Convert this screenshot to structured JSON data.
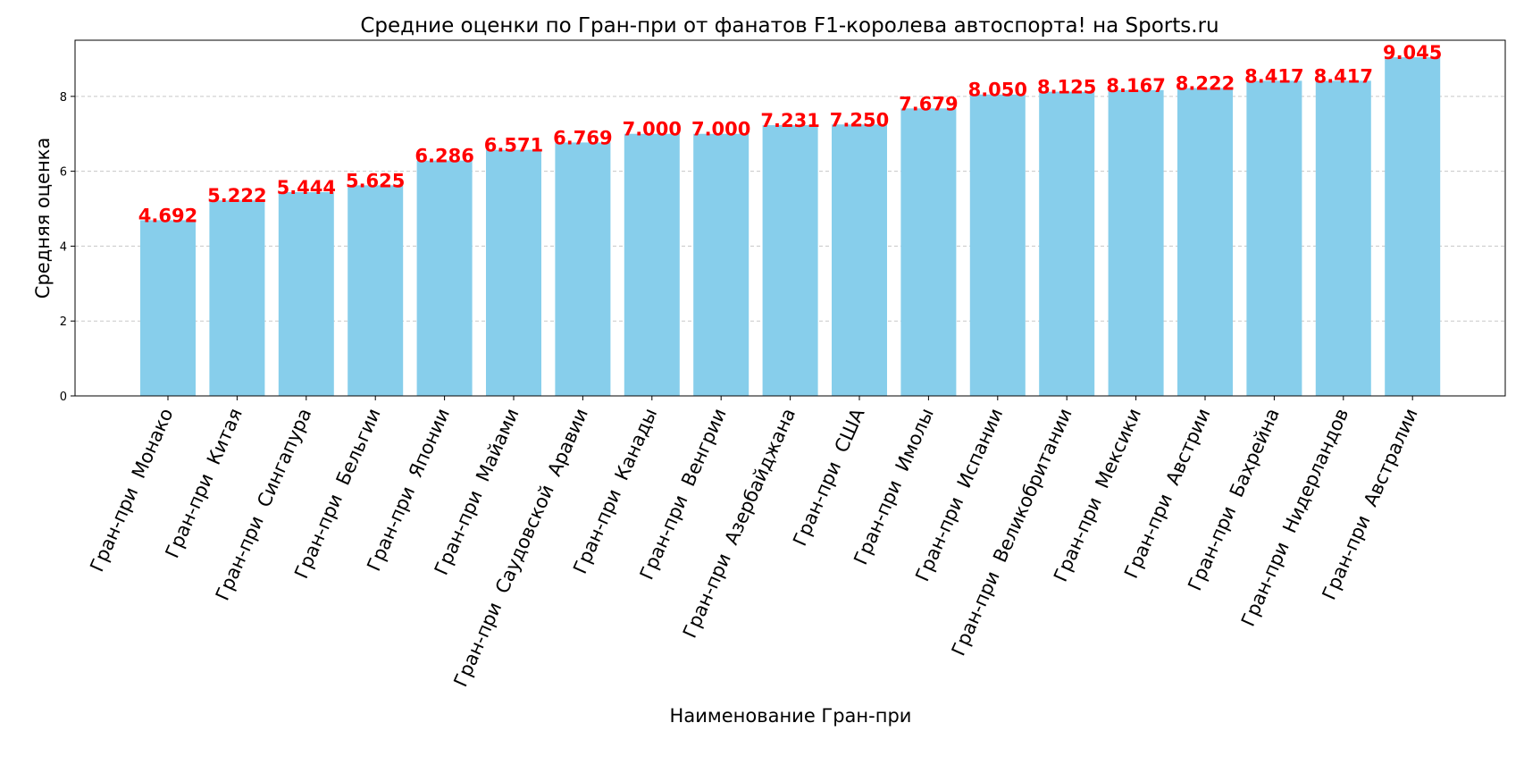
{
  "chart_data": {
    "type": "bar",
    "title": "Средние оценки по Гран-при от фанатов F1-королева автоспорта! на Sports.ru",
    "xlabel": "Наименование Гран-при",
    "ylabel": "Средняя оценка",
    "categories": [
      "Гран-при  Монако",
      "Гран-при  Китая",
      "Гран-при  Сингапура",
      "Гран-при  Бельгии",
      "Гран-при  Японии",
      "Гран-при  Майами",
      "Гран-при  Саудовской  Аравии",
      "Гран-при  Канады",
      "Гран-при  Венгрии",
      "Гран-при  Азербайджана",
      "Гран-при  США",
      "Гран-при  Имолы",
      "Гран-при  Испании",
      "Гран-при  Великобритании",
      "Гран-при  Мексики",
      "Гран-при  Австрии",
      "Гран-при  Бахрейна",
      "Гран-при  Нидерландов",
      "Гран-при  Австралии"
    ],
    "values": [
      4.692,
      5.222,
      5.444,
      5.625,
      6.286,
      6.571,
      6.769,
      7.0,
      7.0,
      7.231,
      7.25,
      7.679,
      8.05,
      8.125,
      8.167,
      8.222,
      8.417,
      8.417,
      9.045
    ],
    "value_labels": [
      "4.692",
      "5.222",
      "5.444",
      "5.625",
      "6.286",
      "6.571",
      "6.769",
      "7.000",
      "7.000",
      "7.231",
      "7.250",
      "7.679",
      "8.050",
      "8.125",
      "8.167",
      "8.222",
      "8.417",
      "8.417",
      "9.045"
    ],
    "ylim": [
      0,
      9.5
    ],
    "yticks": [
      0,
      2,
      4,
      6,
      8
    ],
    "ytick_labels": [
      "0",
      "2",
      "4",
      "6",
      "8"
    ],
    "grid": "y-dashed",
    "colors": {
      "bar": "#87CEEB",
      "value_label": "#ff0000",
      "grid": "#c8c8c8",
      "axis": "#000000"
    }
  }
}
